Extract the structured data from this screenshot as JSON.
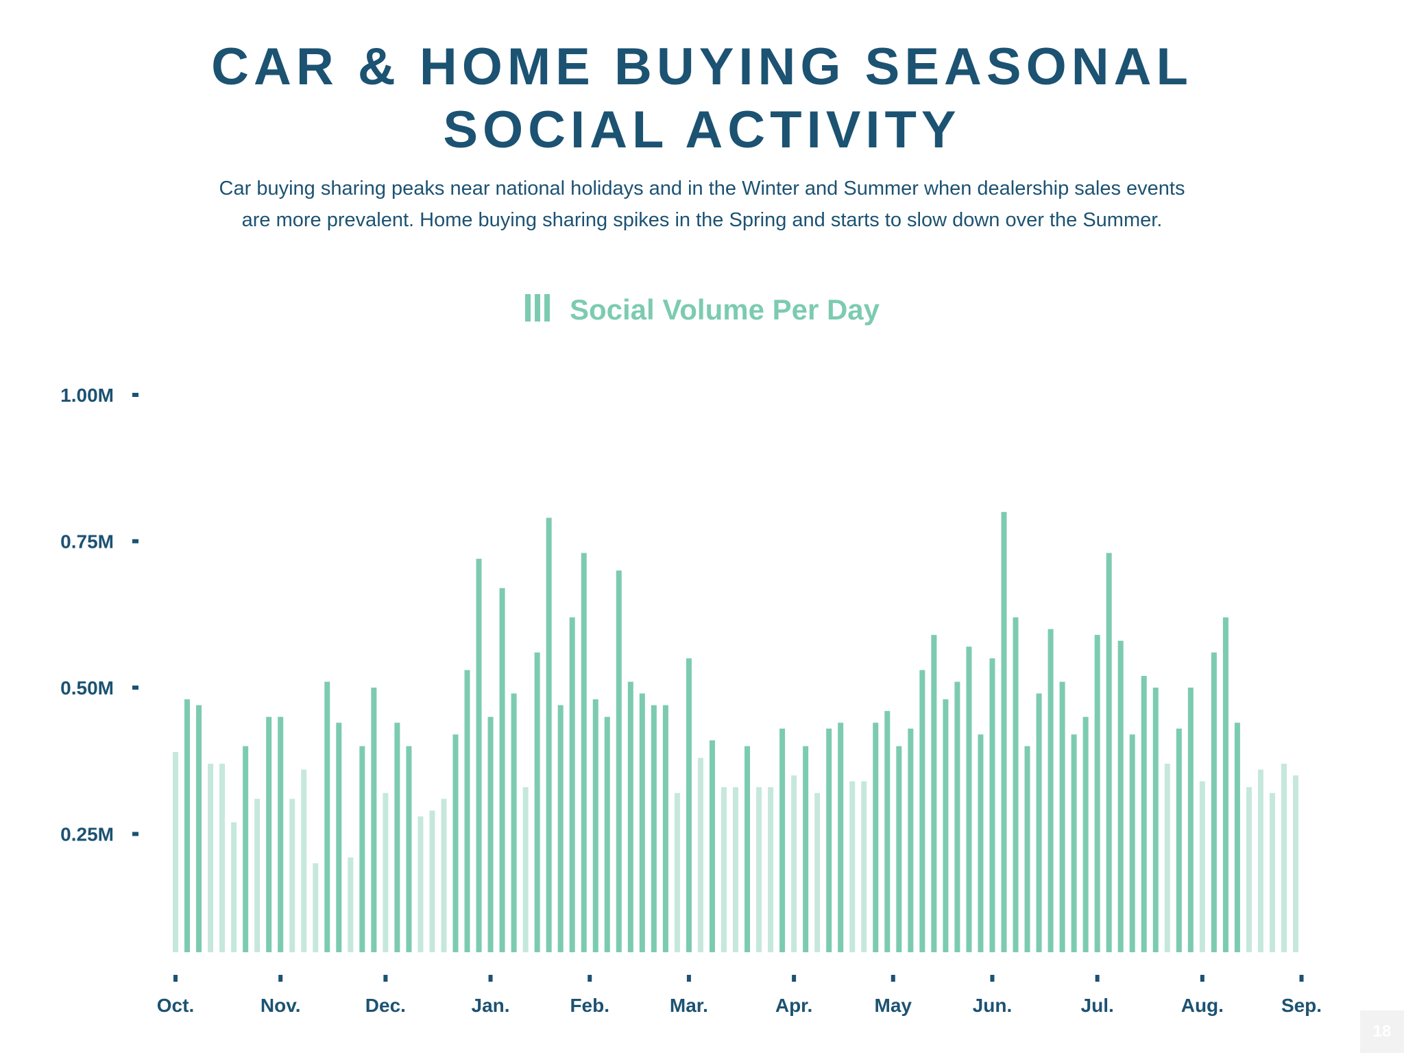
{
  "header": {
    "title_line1": "CAR & HOME BUYING SEASONAL",
    "title_line2": "SOCIAL ACTIVITY",
    "subtitle_line1": "Car buying sharing peaks near national holidays and in the Winter and Summer when dealership sales events",
    "subtitle_line2": "are more prevalent. Home buying sharing spikes in the Spring and starts to slow down over the Summer."
  },
  "colors": {
    "title": "#1c5272",
    "bar_dark": "#7ccbb0",
    "bar_light": "#c6e8dc",
    "axis_tick": "#1c5272"
  },
  "page_number": "18",
  "chart_data": {
    "type": "bar",
    "legend": "Social Volume Per Day",
    "legend_icon": "bars-icon",
    "ylim": [
      0.05,
      1.0
    ],
    "y_ticks": [
      {
        "value": 1.0,
        "label": "1.00M"
      },
      {
        "value": 0.75,
        "label": "0.75M"
      },
      {
        "value": 0.5,
        "label": "0.50M"
      },
      {
        "value": 0.25,
        "label": "0.25M"
      }
    ],
    "x_ticks": [
      {
        "index": 0,
        "label": "Oct."
      },
      {
        "index": 9,
        "label": "Nov."
      },
      {
        "index": 18,
        "label": "Dec."
      },
      {
        "index": 27,
        "label": "Jan."
      },
      {
        "index": 35.5,
        "label": "Feb."
      },
      {
        "index": 44,
        "label": "Mar."
      },
      {
        "index": 53,
        "label": "Apr."
      },
      {
        "index": 61.5,
        "label": "May"
      },
      {
        "index": 70,
        "label": "Jun."
      },
      {
        "index": 79,
        "label": "Jul."
      },
      {
        "index": 88,
        "label": "Aug."
      },
      {
        "index": 96.5,
        "label": "Sep."
      }
    ],
    "values": [
      0.39,
      0.48,
      0.47,
      0.37,
      0.37,
      0.27,
      0.4,
      0.31,
      0.45,
      0.45,
      0.31,
      0.36,
      0.2,
      0.51,
      0.44,
      0.21,
      0.4,
      0.5,
      0.32,
      0.44,
      0.4,
      0.28,
      0.29,
      0.31,
      0.42,
      0.53,
      0.72,
      0.45,
      0.67,
      0.49,
      0.33,
      0.56,
      0.79,
      0.47,
      0.62,
      0.73,
      0.48,
      0.45,
      0.7,
      0.51,
      0.49,
      0.47,
      0.47,
      0.32,
      0.55,
      0.38,
      0.41,
      0.33,
      0.33,
      0.4,
      0.33,
      0.33,
      0.43,
      0.35,
      0.4,
      0.32,
      0.43,
      0.44,
      0.34,
      0.34,
      0.44,
      0.46,
      0.4,
      0.43,
      0.53,
      0.59,
      0.48,
      0.51,
      0.57,
      0.42,
      0.55,
      0.8,
      0.62,
      0.4,
      0.49,
      0.6,
      0.51,
      0.42,
      0.45,
      0.59,
      0.73,
      0.58,
      0.42,
      0.52,
      0.5,
      0.37,
      0.43,
      0.5,
      0.34,
      0.56,
      0.62,
      0.44,
      0.33,
      0.36,
      0.32,
      0.37,
      0.35
    ],
    "shade": [
      "L",
      "D",
      "D",
      "L",
      "L",
      "L",
      "D",
      "L",
      "D",
      "D",
      "L",
      "L",
      "L",
      "D",
      "D",
      "L",
      "D",
      "D",
      "L",
      "D",
      "D",
      "L",
      "L",
      "L",
      "D",
      "D",
      "D",
      "D",
      "D",
      "D",
      "L",
      "D",
      "D",
      "D",
      "D",
      "D",
      "D",
      "D",
      "D",
      "D",
      "D",
      "D",
      "D",
      "L",
      "D",
      "L",
      "D",
      "L",
      "L",
      "D",
      "L",
      "L",
      "D",
      "L",
      "D",
      "L",
      "D",
      "D",
      "L",
      "L",
      "D",
      "D",
      "D",
      "D",
      "D",
      "D",
      "D",
      "D",
      "D",
      "D",
      "D",
      "D",
      "D",
      "D",
      "D",
      "D",
      "D",
      "D",
      "D",
      "D",
      "D",
      "D",
      "D",
      "D",
      "D",
      "L",
      "D",
      "D",
      "L",
      "D",
      "D",
      "D",
      "L",
      "L",
      "L",
      "L",
      "L"
    ]
  }
}
